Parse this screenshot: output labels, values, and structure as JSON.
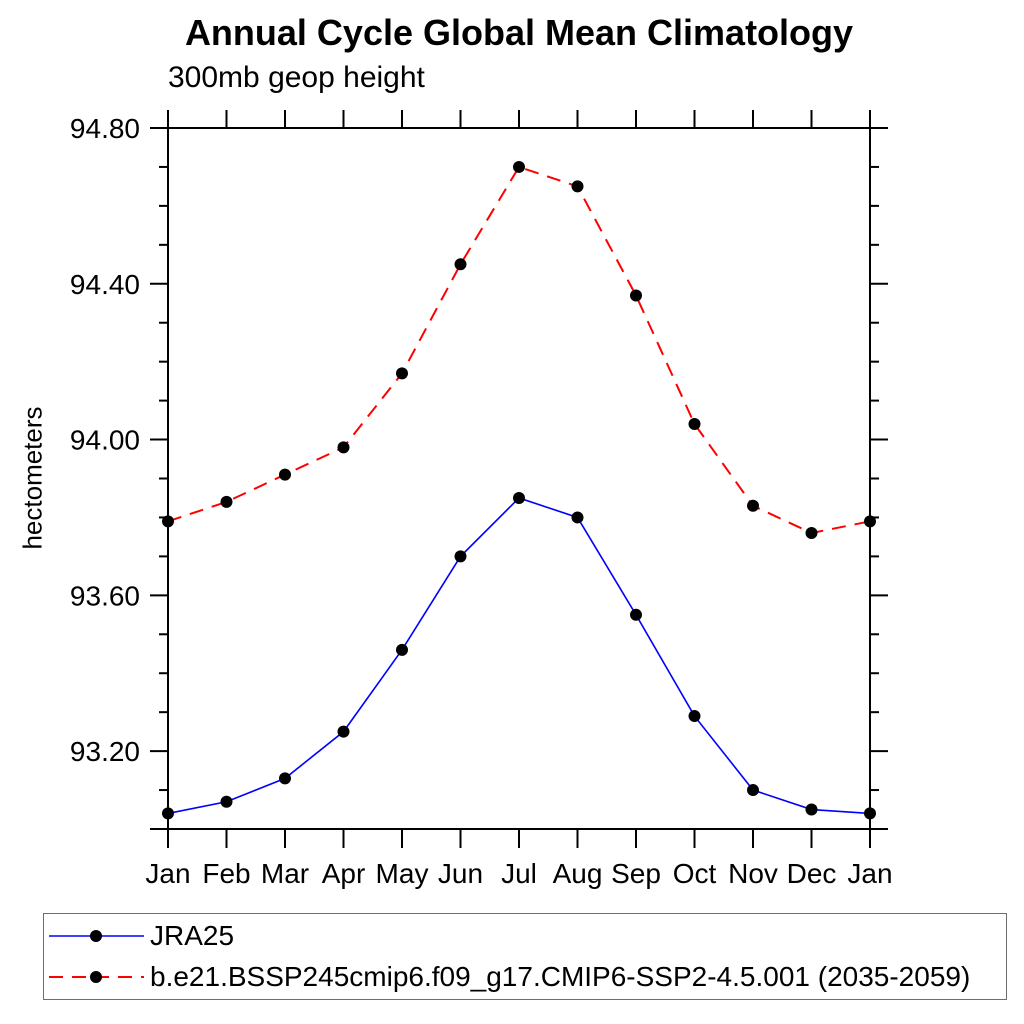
{
  "page": {
    "background": "#ffffff"
  },
  "chart_data": {
    "type": "line",
    "title": "Annual Cycle Global Mean Climatology",
    "subtitle": "300mb geop height",
    "ylabel": "hectometers",
    "x_categories": [
      "Jan",
      "Feb",
      "Mar",
      "Apr",
      "May",
      "Jun",
      "Jul",
      "Aug",
      "Sep",
      "Oct",
      "Nov",
      "Dec",
      "Jan"
    ],
    "ylim": [
      93.0,
      94.8
    ],
    "y_major_ticks": [
      94.8,
      94.4,
      94.0,
      93.6,
      93.2,
      93.0
    ],
    "y_major_tick_labels": [
      "94.80",
      "94.40",
      "94.00",
      "93.60",
      "93.20",
      ""
    ],
    "y_minor_step": 0.1,
    "grid": false,
    "legend_position": "bottom",
    "axis_color": "#000000",
    "marker_shape": "filled-circle",
    "series": [
      {
        "name": "JRA25",
        "color": "#0000ff",
        "line_style": "solid",
        "marker_color": "#000000",
        "values": [
          93.04,
          93.07,
          93.13,
          93.25,
          93.46,
          93.7,
          93.85,
          93.8,
          93.55,
          93.29,
          93.1,
          93.05,
          93.04
        ]
      },
      {
        "name": "b.e21.BSSP245cmip6.f09_g17.CMIP6-SSP2-4.5.001 (2035-2059)",
        "color": "#ff0000",
        "line_style": "dashed",
        "marker_color": "#000000",
        "values": [
          93.79,
          93.84,
          93.91,
          93.98,
          94.17,
          94.45,
          94.7,
          94.65,
          94.37,
          94.04,
          93.83,
          93.76,
          93.79
        ]
      }
    ]
  }
}
